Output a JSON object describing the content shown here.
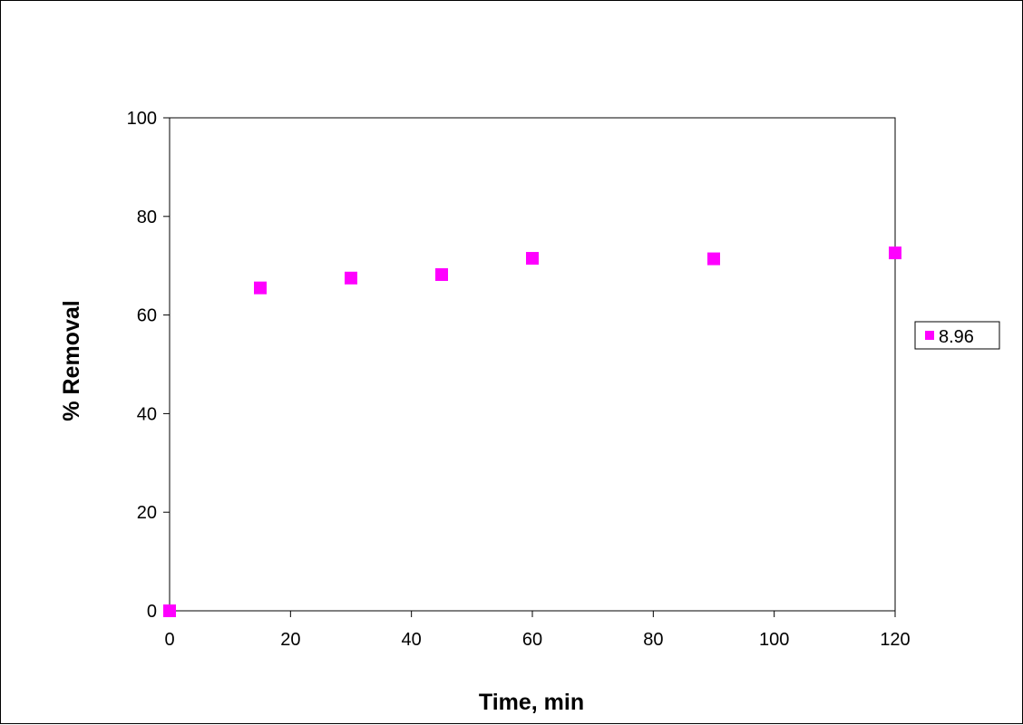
{
  "chart_data": {
    "type": "scatter",
    "title": "",
    "xlabel": "Time, min",
    "ylabel": "% Removal",
    "xlim": [
      0,
      120
    ],
    "ylim": [
      0,
      100
    ],
    "xticks": [
      "0",
      "20",
      "40",
      "60",
      "80",
      "100",
      "120"
    ],
    "yticks": [
      "0",
      "20",
      "40",
      "60",
      "80",
      "100"
    ],
    "grid": false,
    "legend_position": "right",
    "series": [
      {
        "name": "8.96",
        "color": "#ff00ff",
        "marker": "square",
        "x": [
          0,
          15,
          30,
          45,
          60,
          90,
          120
        ],
        "y": [
          0,
          65.5,
          67.5,
          68.2,
          71.5,
          71.4,
          72.6
        ]
      }
    ]
  }
}
